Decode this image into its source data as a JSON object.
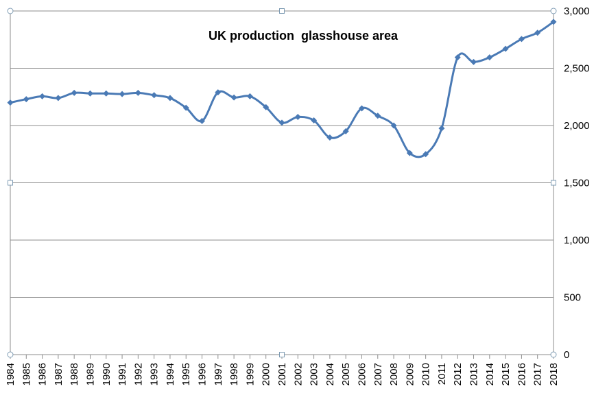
{
  "chart_data": {
    "type": "line",
    "title": "UK production  glasshouse area",
    "xlabel": "",
    "ylabel": "",
    "ylim": [
      0,
      3000
    ],
    "yticks": [
      "0",
      "500",
      "1,000",
      "1,500",
      "2,000",
      "2,500",
      "3,000"
    ],
    "y_axis_side": "right",
    "grid": true,
    "legend": "none",
    "x": [
      "1984",
      "1985",
      "1986",
      "1987",
      "1988",
      "1989",
      "1990",
      "1991",
      "1992",
      "1993",
      "1994",
      "1995",
      "1996",
      "1997",
      "1998",
      "1999",
      "2000",
      "2001",
      "2002",
      "2003",
      "2004",
      "2005",
      "2006",
      "2007",
      "2008",
      "2009",
      "2010",
      "2011",
      "2012",
      "2013",
      "2014",
      "2015",
      "2016",
      "2017",
      "2018"
    ],
    "series": [
      {
        "color": "#4a7ab5",
        "values": [
          2200,
          2230,
          2255,
          2240,
          2285,
          2280,
          2280,
          2275,
          2285,
          2265,
          2240,
          2155,
          2040,
          2290,
          2245,
          2255,
          2160,
          2025,
          2075,
          2045,
          1895,
          1950,
          2150,
          2085,
          2000,
          1760,
          1750,
          1975,
          2595,
          2555,
          2595,
          2670,
          2755,
          2810,
          2905
        ]
      }
    ]
  }
}
